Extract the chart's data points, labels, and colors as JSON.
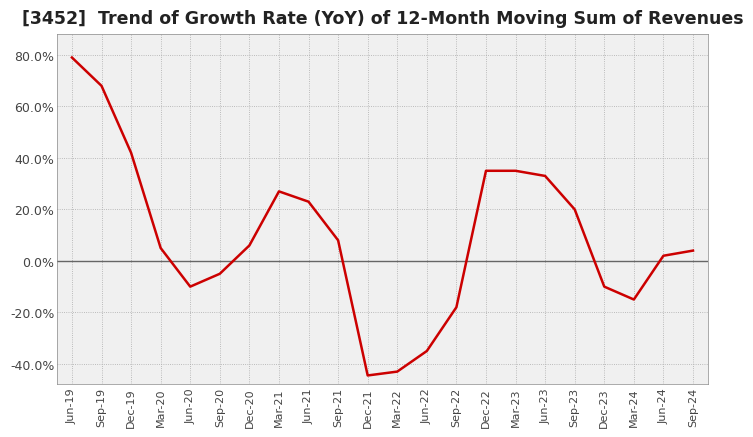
{
  "title": "[3452]  Trend of Growth Rate (YoY) of 12-Month Moving Sum of Revenues",
  "title_fontsize": 12.5,
  "line_color": "#cc0000",
  "background_color": "#ffffff",
  "plot_bg_color": "#f0f0f0",
  "grid_color": "#aaaaaa",
  "ylim": [
    -48,
    88
  ],
  "yticks": [
    -40,
    -20,
    0,
    20,
    40,
    60,
    80
  ],
  "x_labels": [
    "Jun-19",
    "Sep-19",
    "Dec-19",
    "Mar-20",
    "Jun-20",
    "Sep-20",
    "Dec-20",
    "Mar-21",
    "Jun-21",
    "Sep-21",
    "Dec-21",
    "Mar-22",
    "Jun-22",
    "Sep-22",
    "Dec-22",
    "Mar-23",
    "Jun-23",
    "Sep-23",
    "Dec-23",
    "Mar-24",
    "Jun-24",
    "Sep-24"
  ],
  "values": [
    79.0,
    68.0,
    42.0,
    5.0,
    -10.0,
    -5.0,
    6.0,
    27.0,
    23.0,
    8.0,
    -44.5,
    -43.0,
    -35.0,
    -18.0,
    35.0,
    35.0,
    33.0,
    20.0,
    -10.0,
    -15.0,
    2.0,
    4.0
  ]
}
